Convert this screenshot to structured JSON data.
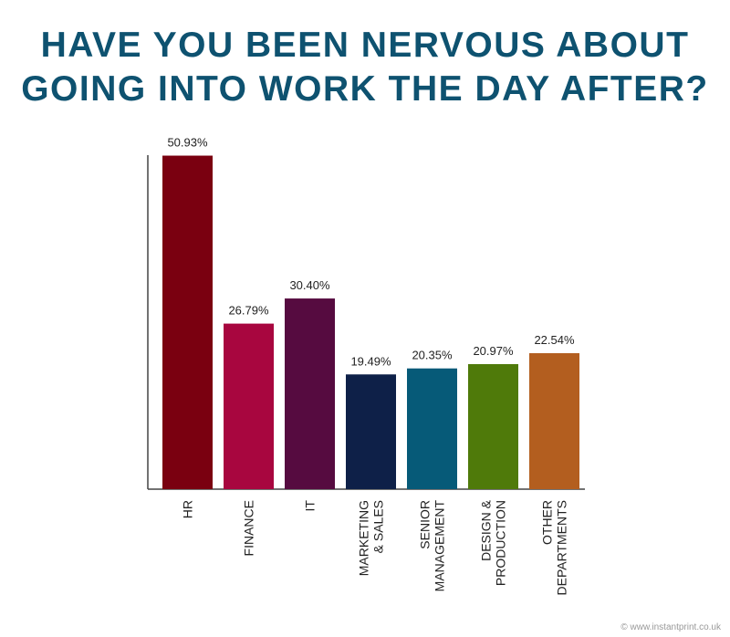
{
  "chart_data": {
    "type": "bar",
    "title": [
      "HAVE YOU BEEN NERVOUS ABOUT",
      "GOING INTO WORK THE DAY AFTER?"
    ],
    "categories": [
      [
        "HR"
      ],
      [
        "FINANCE"
      ],
      [
        "IT"
      ],
      [
        "MARKETING",
        "& SALES"
      ],
      [
        "SENIOR",
        "MANAGEMENT"
      ],
      [
        "DESIGN &",
        "PRODUCTION"
      ],
      [
        "OTHER",
        "DEPARTMENTS"
      ]
    ],
    "values": [
      50.93,
      26.79,
      30.4,
      19.49,
      20.35,
      20.97,
      22.54
    ],
    "value_labels": [
      "50.93%",
      "26.79%",
      "30.40%",
      "19.49%",
      "20.35%",
      "20.97%",
      "22.54%"
    ],
    "colors": [
      "#7a0010",
      "#a8063f",
      "#560b40",
      "#0e2048",
      "#065a78",
      "#4f7a0a",
      "#b35e1f"
    ],
    "ylim": [
      3,
      51
    ],
    "source": "© www.instantprint.co.uk"
  }
}
